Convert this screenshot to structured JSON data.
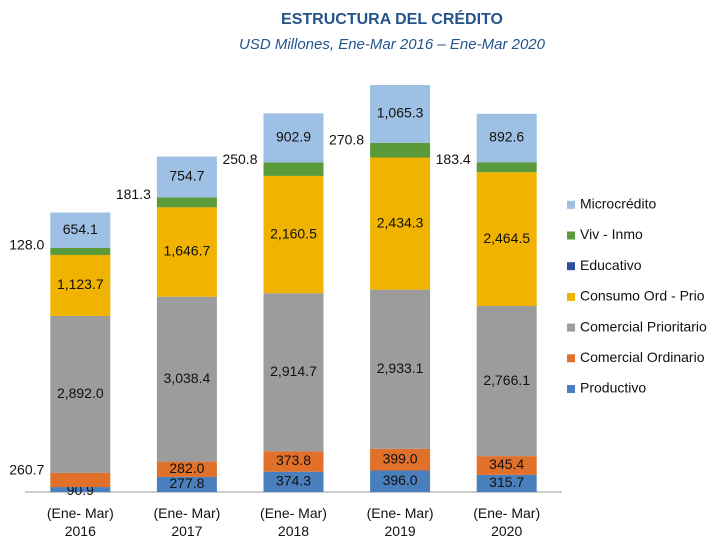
{
  "chart_data": {
    "type": "stacked_bar",
    "title": "ESTRUCTURA DEL CRÉDITO",
    "subtitle": "USD Millones, Ene-Mar 2016 – Ene-Mar 2020",
    "categories": [
      "(Ene- Mar)\n2016",
      "(Ene- Mar)\n2017",
      "(Ene- Mar)\n2018",
      "(Ene- Mar)\n2019",
      "(Ene- Mar)\n2020"
    ],
    "series": [
      {
        "name": "Productivo",
        "color": "#4a7fbd",
        "values": [
          90.9,
          277.8,
          374.3,
          396.0,
          315.7
        ],
        "value_labels": [
          "90.9",
          "277.8",
          "374.3",
          "396.0",
          "315.7"
        ]
      },
      {
        "name": "Comercial Ordinario",
        "color": "#e0702a",
        "values": [
          260.7,
          282.0,
          373.8,
          399.0,
          345.4
        ],
        "value_labels": [
          "260.7",
          "282.0",
          "373.8",
          "399.0",
          "345.4"
        ]
      },
      {
        "name": "Comercial Prioritario",
        "color": "#9c9c9c",
        "values": [
          2892.0,
          3038.4,
          2914.7,
          2933.1,
          2766.1
        ],
        "value_labels": [
          "2,892.0",
          "3,038.4",
          "2,914.7",
          "2,933.1",
          "2,766.1"
        ]
      },
      {
        "name": "Consumo Ord - Prio",
        "color": "#f0b400",
        "values": [
          1123.7,
          1646.7,
          2160.5,
          2434.3,
          2464.5
        ],
        "value_labels": [
          "1,123.7",
          "1,646.7",
          "2,160.5",
          "2,434.3",
          "2,464.5"
        ]
      },
      {
        "name": "Educativo",
        "color": "#2e4f9c",
        "values": [
          0,
          0,
          0,
          0,
          0
        ]
      },
      {
        "name": "Viv - Inmo",
        "color": "#5a9a3a",
        "values": [
          128.0,
          181.3,
          250.8,
          270.8,
          183.4
        ],
        "value_labels": [
          "128.0",
          "181.3",
          "250.8",
          "270.8",
          "183.4"
        ]
      },
      {
        "name": "Microcrédito",
        "color": "#9dc0e4",
        "values": [
          654.1,
          754.7,
          902.9,
          1065.3,
          892.6
        ],
        "value_labels": [
          "654.1",
          "754.7",
          "902.9",
          "1,065.3",
          "892.6"
        ]
      }
    ],
    "legend": "right"
  }
}
